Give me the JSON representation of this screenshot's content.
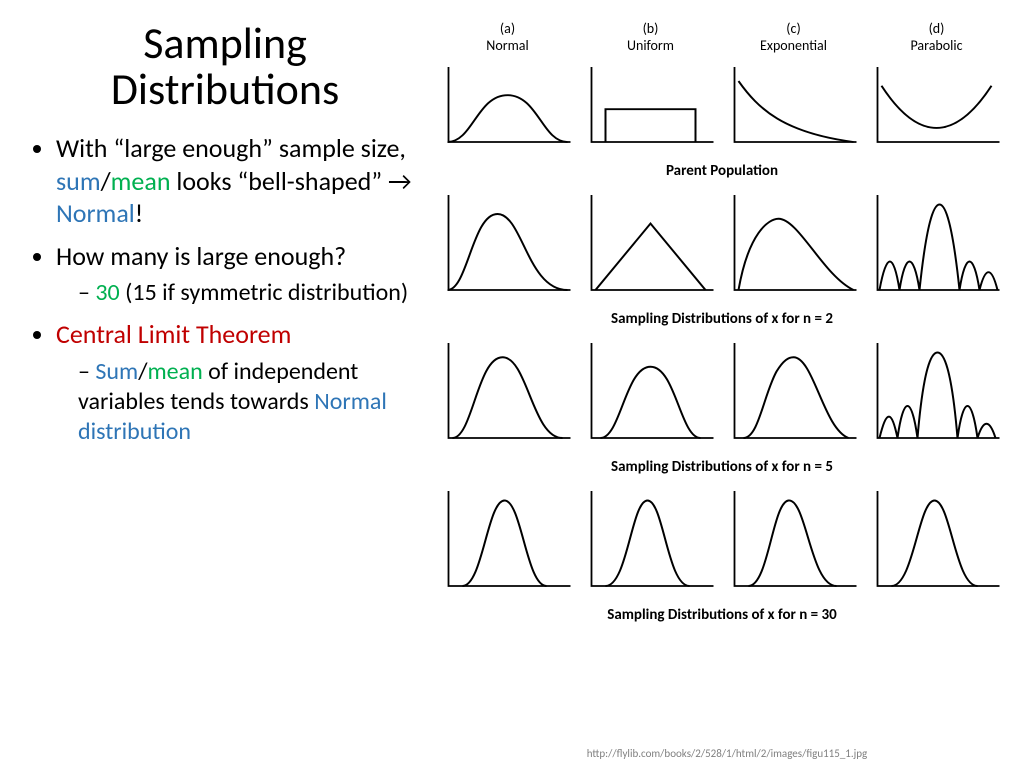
{
  "title": "Sampling Distributions",
  "bullets": {
    "b1_pre": "With “large enough” sample size, ",
    "b1_sum": "sum",
    "b1_slash": "/",
    "b1_mean": "mean",
    "b1_mid": " looks “bell-shaped” → ",
    "b1_normal": "Normal",
    "b1_excl": "!",
    "b2": "How many is large enough?",
    "b2s_30": "30",
    "b2s_rest": " (15 if symmetric distribution)",
    "b3": "Central Limit Theorem",
    "b3s_sum": "Sum",
    "b3s_slash": "/",
    "b3s_mean": "mean",
    "b3s_mid": " of independent variables tends towards ",
    "b3s_normal": "Normal distribution"
  },
  "figure": {
    "columns": [
      {
        "tag": "(a)",
        "name": "Normal"
      },
      {
        "tag": "(b)",
        "name": "Uniform"
      },
      {
        "tag": "(c)",
        "name": "Exponential"
      },
      {
        "tag": "(d)",
        "name": "Parabolic"
      }
    ],
    "row_labels": [
      "Parent Population",
      "Sampling Distributions of x for n = 2",
      "Sampling Distributions of x for n = 5",
      "Sampling Distributions of x for n = 30"
    ],
    "colors": {
      "axis": "#000000",
      "curve": "#000000",
      "bg": "#ffffff"
    },
    "stroke_width": 2,
    "panel_aspect": [
      130,
      92
    ],
    "rows": [
      {
        "height": 92,
        "paths": [
          "M5 80 C 30 80 35 30 65 30 C 95 30 100 80 125 80",
          "M20 80 L20 45 L110 45 L110 80",
          "M10 15 C 30 45 55 70 125 80",
          "M10 20 Q 65 110 120 20"
        ]
      },
      {
        "height": 112,
        "paths": [
          "M5 100 C 25 100 30 20 55 20 C 80 20 85 100 125 100",
          "M10 100 L65 30 L120 100",
          "M10 100 C 20 40 40 25 50 25 C 70 25 95 85 125 100",
          "M8 100 C 15 60 22 60 28 100 C 34 60 42 60 48 100 C 55 30 62 10 68 10 C 74 10 81 30 88 100 C 94 60 102 60 108 100 C 114 75 120 75 126 100"
        ]
      },
      {
        "height": 112,
        "paths": [
          "M10 100 C 30 100 35 15 60 15 C 85 15 90 100 120 100",
          "M15 100 C 35 100 40 25 65 25 C 90 25 95 100 115 100",
          "M15 100 C 30 100 35 55 48 30 C 55 18 60 15 65 15 C 85 15 95 90 120 100",
          "M8 100 C 15 70 20 70 26 100 C 32 55 40 55 46 100 C 52 25 60 10 66 10 C 72 10 80 25 86 100 C 92 55 100 55 106 100 C 112 80 118 80 124 100"
        ]
      },
      {
        "height": 112,
        "paths": [
          "M20 100 C 40 100 45 10 62 10 C 79 10 84 100 104 100",
          "M20 100 C 42 100 46 10 62 10 C 78 10 82 100 104 100",
          "M20 100 C 40 100 44 12 60 10 C 78 8 82 100 108 100",
          "M20 100 C 42 100 47 10 63 10 C 79 10 84 100 106 100"
        ]
      }
    ]
  },
  "citation": "http://flylib.com/books/2/528/1/html/2/images/figu115_1.jpg"
}
